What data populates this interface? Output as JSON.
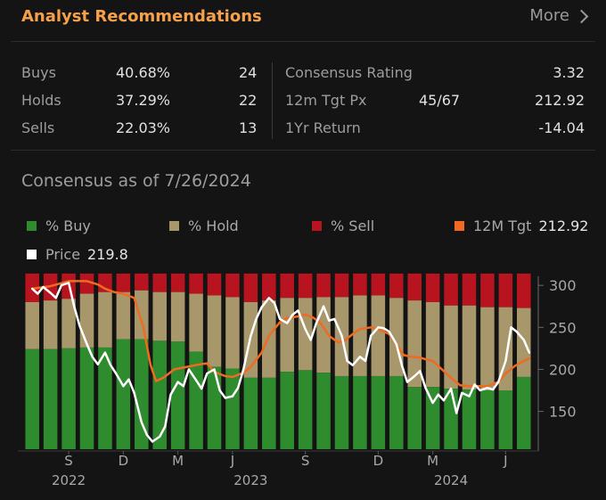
{
  "header": {
    "title": "Analyst Recommendations",
    "more_label": "More"
  },
  "stats": {
    "buys": {
      "label": "Buys",
      "pct": "40.68%",
      "count": "24"
    },
    "holds": {
      "label": "Holds",
      "pct": "37.29%",
      "count": "22"
    },
    "sells": {
      "label": "Sells",
      "pct": "22.03%",
      "count": "13"
    },
    "consensus": {
      "label": "Consensus Rating",
      "value": "3.32"
    },
    "target": {
      "label": "12m Tgt Px",
      "ratio": "45/67",
      "value": "212.92"
    },
    "return": {
      "label": "1Yr Return",
      "value": "-14.04"
    }
  },
  "consensus_title": "Consensus as of 7/26/2024",
  "legend": {
    "buy": "% Buy",
    "hold": "% Hold",
    "sell": "% Sell",
    "tgt": "12M Tgt",
    "tgt_value": "212.92",
    "price": "Price",
    "price_value": "219.8"
  },
  "colors": {
    "buy": "#2e8b2e",
    "hold": "#a8976a",
    "sell": "#b8141f",
    "tgt": "#f06a22",
    "price": "#ffffff",
    "accent": "#f5a04a"
  },
  "chart_data": {
    "type": "bar",
    "description": "stacked bars of recommendation shares (mapped to price scale) with 12M target and price lines",
    "ylim": [
      105,
      315
    ],
    "y_ticks": [
      300,
      250,
      200,
      150
    ],
    "x_tick_labels": [
      "S",
      "D",
      "M",
      "J",
      "S",
      "D",
      "M",
      "J"
    ],
    "x_tick_positions": [
      2,
      5,
      8,
      11,
      15,
      19,
      22,
      26
    ],
    "year_labels": [
      {
        "label": "2022",
        "pos": 2
      },
      {
        "label": "2023",
        "pos": 12
      },
      {
        "label": "2024",
        "pos": 23
      }
    ],
    "bars": [
      {
        "buy": 224,
        "hold": 280
      },
      {
        "buy": 224,
        "hold": 282
      },
      {
        "buy": 225,
        "hold": 284
      },
      {
        "buy": 226,
        "hold": 290
      },
      {
        "buy": 226,
        "hold": 292
      },
      {
        "buy": 236,
        "hold": 292
      },
      {
        "buy": 236,
        "hold": 294
      },
      {
        "buy": 234,
        "hold": 292
      },
      {
        "buy": 233,
        "hold": 292
      },
      {
        "buy": 221,
        "hold": 290
      },
      {
        "buy": 203,
        "hold": 288
      },
      {
        "buy": 201,
        "hold": 286
      },
      {
        "buy": 190,
        "hold": 280
      },
      {
        "buy": 190,
        "hold": 282
      },
      {
        "buy": 197,
        "hold": 285
      },
      {
        "buy": 199,
        "hold": 285
      },
      {
        "buy": 196,
        "hold": 286
      },
      {
        "buy": 192,
        "hold": 286
      },
      {
        "buy": 192,
        "hold": 288
      },
      {
        "buy": 192,
        "hold": 288
      },
      {
        "buy": 192,
        "hold": 285
      },
      {
        "buy": 179,
        "hold": 282
      },
      {
        "buy": 179,
        "hold": 280
      },
      {
        "buy": 177,
        "hold": 276
      },
      {
        "buy": 176,
        "hold": 276
      },
      {
        "buy": 175,
        "hold": 274
      },
      {
        "buy": 175,
        "hold": 274
      },
      {
        "buy": 191,
        "hold": 273
      }
    ],
    "bar_top": 314,
    "tgt_line": [
      [
        0,
        296
      ],
      [
        1,
        299
      ],
      [
        2,
        305
      ],
      [
        3,
        305
      ],
      [
        3.6,
        301
      ],
      [
        4,
        296
      ],
      [
        4.5,
        292
      ],
      [
        5,
        290
      ],
      [
        5.6,
        285
      ],
      [
        6.1,
        250
      ],
      [
        6.5,
        205
      ],
      [
        6.8,
        186
      ],
      [
        7.2,
        190
      ],
      [
        7.8,
        200
      ],
      [
        8.5,
        203
      ],
      [
        9.2,
        206
      ],
      [
        9.6,
        207
      ],
      [
        10,
        197
      ],
      [
        10.6,
        192
      ],
      [
        11,
        191
      ],
      [
        11.6,
        196
      ],
      [
        12,
        203
      ],
      [
        12.6,
        220
      ],
      [
        13,
        240
      ],
      [
        13.6,
        256
      ],
      [
        14,
        261
      ],
      [
        14.6,
        263
      ],
      [
        15,
        265
      ],
      [
        15.4,
        262
      ],
      [
        15.8,
        256
      ],
      [
        16.3,
        240
      ],
      [
        16.8,
        232
      ],
      [
        17.2,
        235
      ],
      [
        17.6,
        242
      ],
      [
        18,
        248
      ],
      [
        18.6,
        250
      ],
      [
        19,
        248
      ],
      [
        19.6,
        242
      ],
      [
        20,
        230
      ],
      [
        20.4,
        217
      ],
      [
        20.8,
        215
      ],
      [
        21.3,
        214
      ],
      [
        21.6,
        212
      ],
      [
        22,
        210
      ],
      [
        22.5,
        200
      ],
      [
        23,
        190
      ],
      [
        23.5,
        181
      ],
      [
        24,
        180
      ],
      [
        25,
        180
      ],
      [
        25.6,
        185
      ],
      [
        26,
        195
      ],
      [
        26.5,
        204
      ],
      [
        27,
        210
      ],
      [
        27.3,
        213
      ]
    ],
    "price_line": [
      [
        0,
        296
      ],
      [
        0.3,
        290
      ],
      [
        0.6,
        298
      ],
      [
        1,
        291
      ],
      [
        1.3,
        285
      ],
      [
        1.6,
        300
      ],
      [
        2,
        303
      ],
      [
        2.3,
        275
      ],
      [
        2.6,
        252
      ],
      [
        3,
        230
      ],
      [
        3.3,
        215
      ],
      [
        3.6,
        206
      ],
      [
        4,
        220
      ],
      [
        4.3,
        205
      ],
      [
        4.6,
        195
      ],
      [
        5,
        180
      ],
      [
        5.3,
        188
      ],
      [
        5.6,
        172
      ],
      [
        6,
        137
      ],
      [
        6.3,
        122
      ],
      [
        6.6,
        114
      ],
      [
        7,
        120
      ],
      [
        7.3,
        132
      ],
      [
        7.6,
        170
      ],
      [
        8,
        185
      ],
      [
        8.3,
        180
      ],
      [
        8.6,
        200
      ],
      [
        9,
        187
      ],
      [
        9.3,
        177
      ],
      [
        9.6,
        195
      ],
      [
        10,
        200
      ],
      [
        10.3,
        175
      ],
      [
        10.6,
        166
      ],
      [
        11,
        168
      ],
      [
        11.3,
        178
      ],
      [
        11.6,
        200
      ],
      [
        12,
        240
      ],
      [
        12.3,
        260
      ],
      [
        12.6,
        274
      ],
      [
        13,
        285
      ],
      [
        13.3,
        279
      ],
      [
        13.6,
        260
      ],
      [
        14,
        255
      ],
      [
        14.3,
        265
      ],
      [
        14.6,
        270
      ],
      [
        15,
        248
      ],
      [
        15.3,
        235
      ],
      [
        15.6,
        255
      ],
      [
        16,
        275
      ],
      [
        16.3,
        258
      ],
      [
        16.6,
        260
      ],
      [
        17,
        240
      ],
      [
        17.3,
        210
      ],
      [
        17.6,
        205
      ],
      [
        18,
        215
      ],
      [
        18.3,
        210
      ],
      [
        18.6,
        240
      ],
      [
        19,
        250
      ],
      [
        19.3,
        249
      ],
      [
        19.6,
        245
      ],
      [
        20,
        230
      ],
      [
        20.3,
        205
      ],
      [
        20.6,
        185
      ],
      [
        21,
        192
      ],
      [
        21.3,
        198
      ],
      [
        21.6,
        178
      ],
      [
        22,
        160
      ],
      [
        22.3,
        170
      ],
      [
        22.6,
        163
      ],
      [
        23,
        177
      ],
      [
        23.3,
        148
      ],
      [
        23.6,
        172
      ],
      [
        24,
        168
      ],
      [
        24.3,
        182
      ],
      [
        24.6,
        175
      ],
      [
        25,
        178
      ],
      [
        25.3,
        176
      ],
      [
        25.6,
        185
      ],
      [
        26,
        210
      ],
      [
        26.3,
        250
      ],
      [
        26.6,
        245
      ],
      [
        27,
        235
      ],
      [
        27.3,
        220
      ]
    ]
  }
}
